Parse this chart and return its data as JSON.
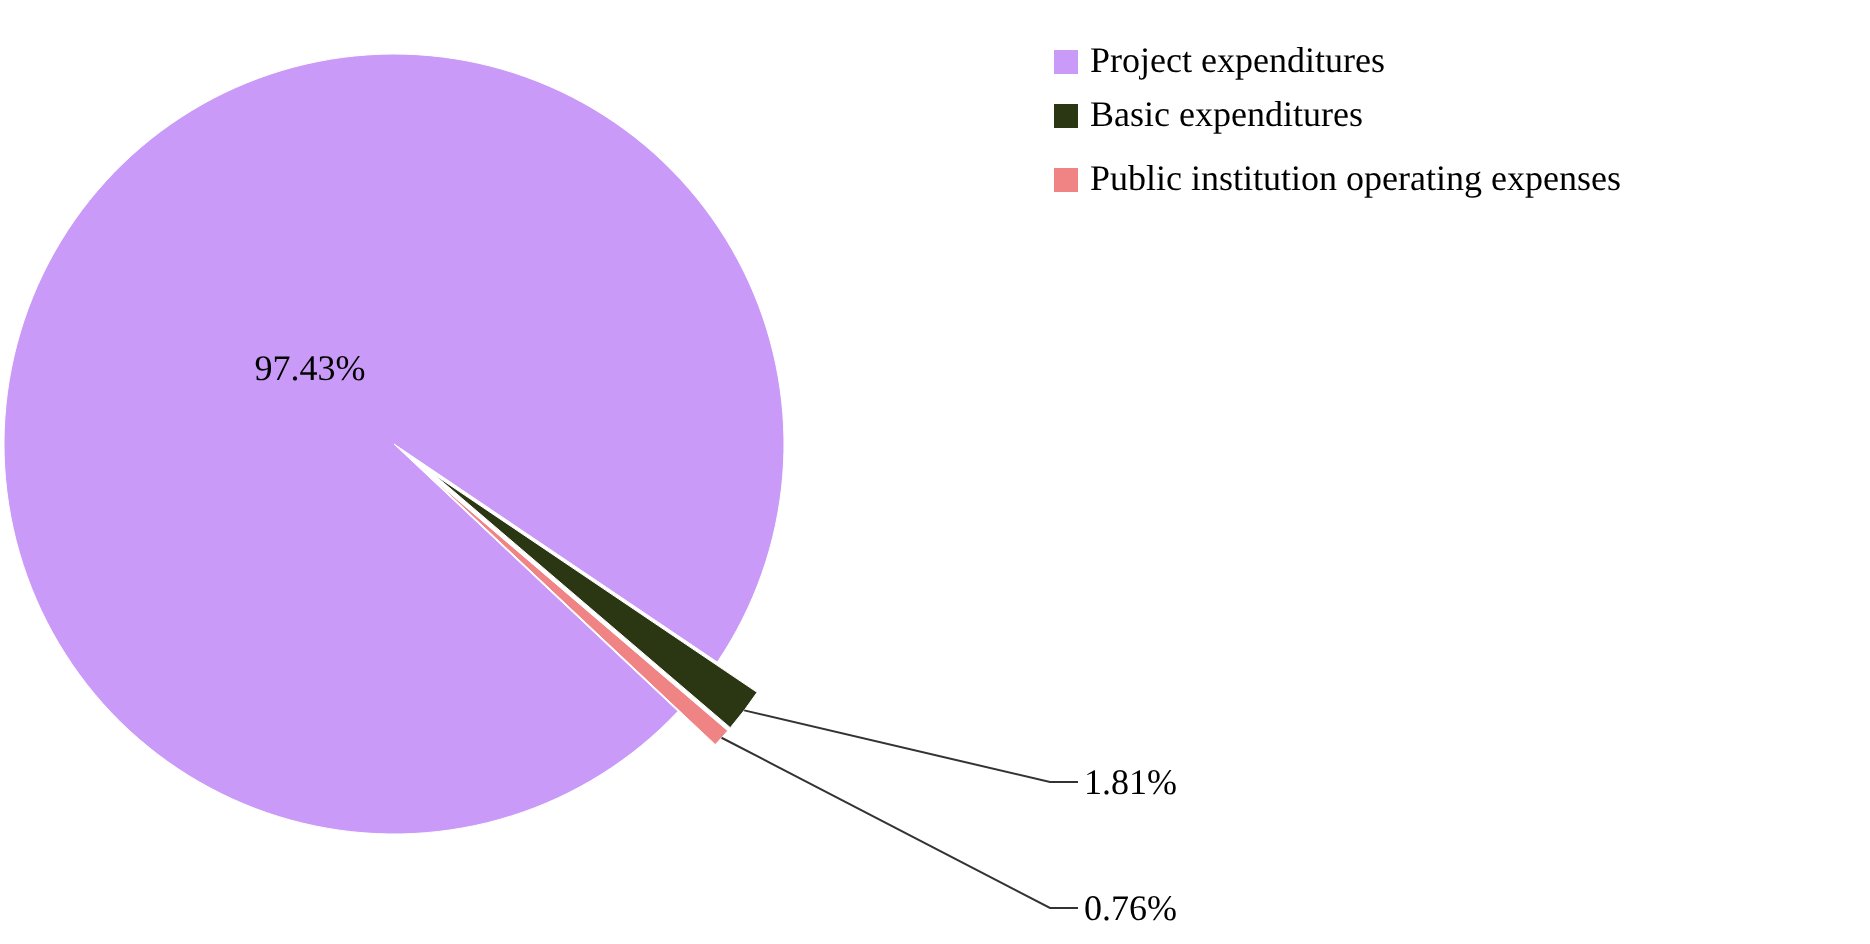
{
  "chart_data": {
    "type": "pie",
    "categories": [
      "Project expenditures",
      "Basic expenditures",
      "Public institution operating expenses"
    ],
    "values": [
      97.43,
      1.81,
      0.76
    ],
    "colors": [
      "#c99af7",
      "#2b3612",
      "#f08484"
    ],
    "value_labels": [
      "97.43%",
      "1.81%",
      "0.76%"
    ],
    "legend": "top right"
  }
}
